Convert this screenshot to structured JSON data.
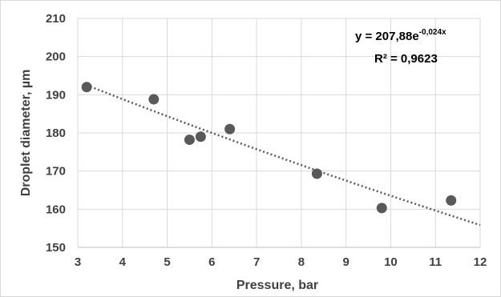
{
  "chart_data": {
    "type": "scatter",
    "xlabel": "Pressure, bar",
    "ylabel": "Droplet diameter, µm",
    "xlim": [
      3,
      12
    ],
    "ylim": [
      150,
      210
    ],
    "x_ticks": [
      "3",
      "4",
      "5",
      "6",
      "7",
      "8",
      "9",
      "10",
      "11",
      "12"
    ],
    "y_ticks": [
      "150",
      "160",
      "170",
      "180",
      "190",
      "200",
      "210"
    ],
    "grid": true,
    "points": [
      {
        "x": 3.2,
        "y": 192.0
      },
      {
        "x": 4.7,
        "y": 188.8
      },
      {
        "x": 5.5,
        "y": 178.2
      },
      {
        "x": 5.75,
        "y": 179.0
      },
      {
        "x": 6.4,
        "y": 181.0
      },
      {
        "x": 8.35,
        "y": 169.3
      },
      {
        "x": 9.8,
        "y": 160.3
      },
      {
        "x": 11.35,
        "y": 162.3
      }
    ],
    "trendline": {
      "type": "exponential",
      "a": 207.88,
      "b": -0.024,
      "x_range": [
        3.2,
        12
      ],
      "equation_main": "y = 207,88e",
      "equation_exponent": "-0,024x",
      "r_squared_label": "R² = 0,9623"
    },
    "colors": {
      "marker": "#595959",
      "trendline": "#595959",
      "grid": "#d9d9d9",
      "axis": "#bfbfbf"
    }
  }
}
